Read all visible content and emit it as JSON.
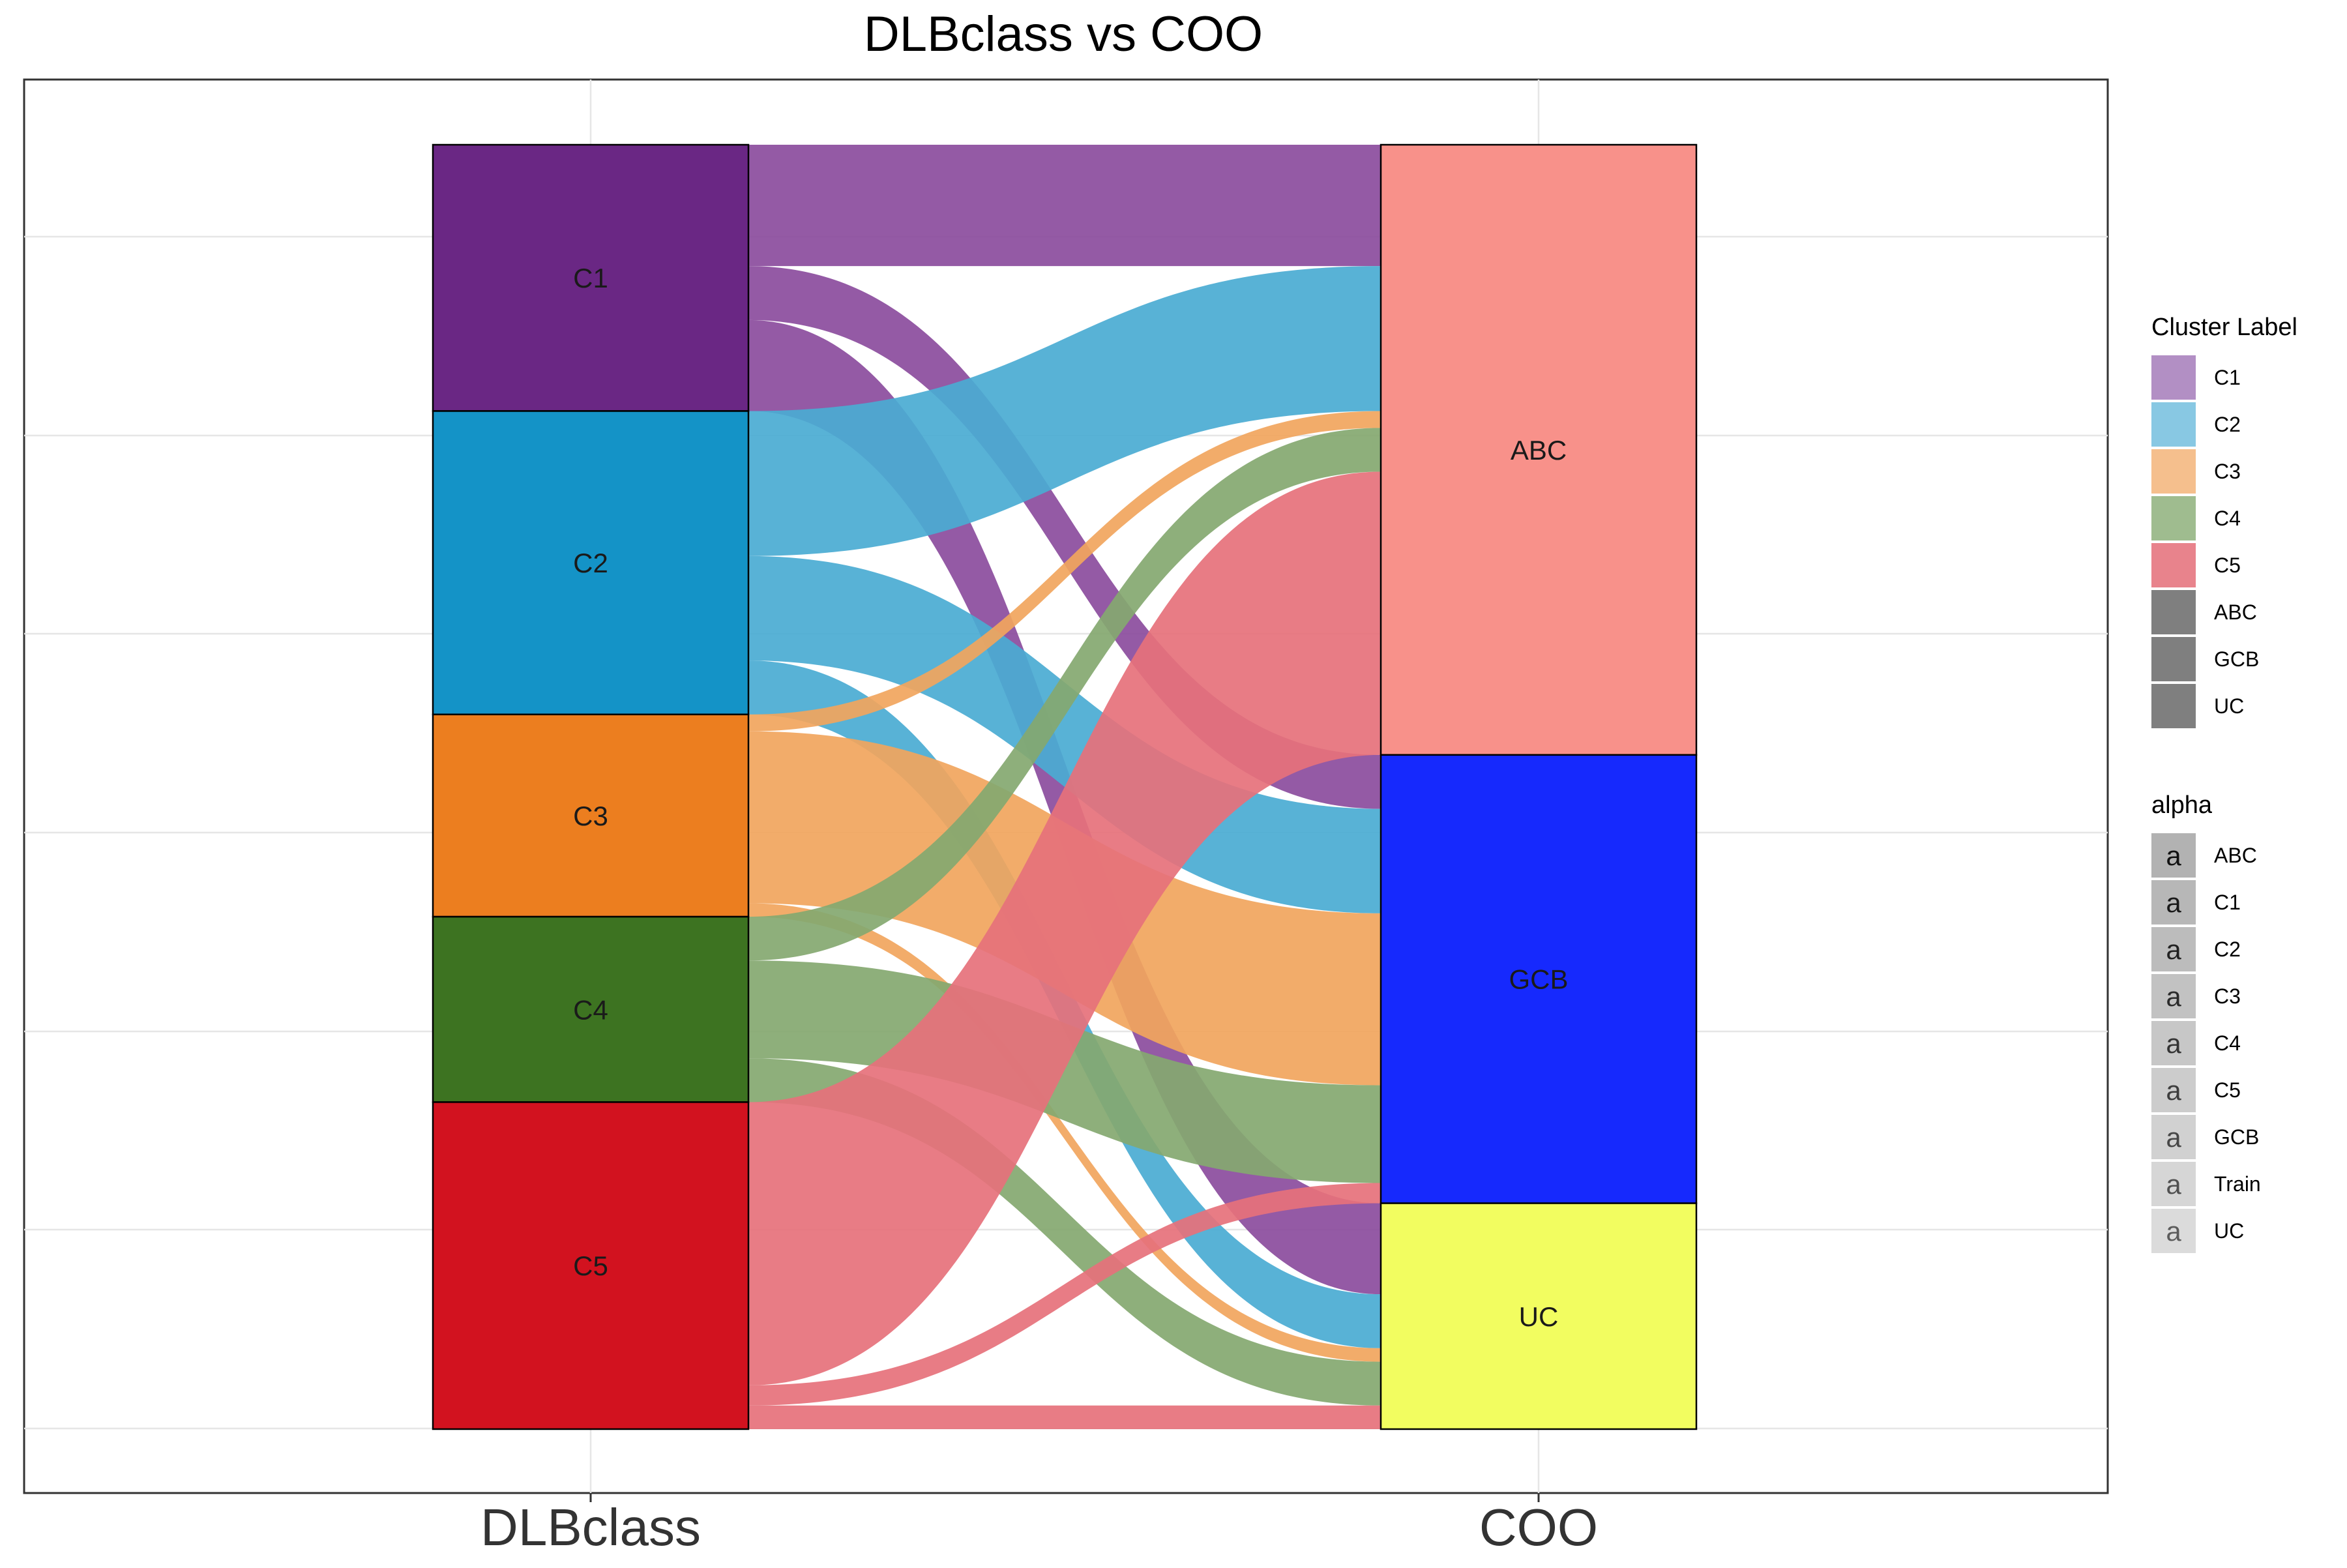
{
  "chart_data": {
    "type": "alluvial",
    "title": "DLBclass vs COO",
    "axes": [
      "DLBclass",
      "COO"
    ],
    "strata": {
      "DLBclass": [
        "C1",
        "C2",
        "C3",
        "C4",
        "C5"
      ],
      "COO": [
        "ABC",
        "GCB",
        "UC"
      ]
    },
    "flows": [
      {
        "from": "C1",
        "to": "ABC",
        "value": 36
      },
      {
        "from": "C1",
        "to": "GCB",
        "value": 16
      },
      {
        "from": "C1",
        "to": "UC",
        "value": 27
      },
      {
        "from": "C2",
        "to": "ABC",
        "value": 43
      },
      {
        "from": "C2",
        "to": "GCB",
        "value": 31
      },
      {
        "from": "C2",
        "to": "UC",
        "value": 16
      },
      {
        "from": "C3",
        "to": "ABC",
        "value": 5
      },
      {
        "from": "C3",
        "to": "GCB",
        "value": 51
      },
      {
        "from": "C3",
        "to": "UC",
        "value": 4
      },
      {
        "from": "C4",
        "to": "ABC",
        "value": 13
      },
      {
        "from": "C4",
        "to": "GCB",
        "value": 29
      },
      {
        "from": "C4",
        "to": "UC",
        "value": 13
      },
      {
        "from": "C5",
        "to": "ABC",
        "value": 84
      },
      {
        "from": "C5",
        "to": "GCB",
        "value": 6
      },
      {
        "from": "C5",
        "to": "UC",
        "value": 7
      }
    ],
    "colors": {
      "C1": "#6a2784",
      "C2": "#1493c7",
      "C3": "#ec7e1f",
      "C4": "#3d7321",
      "C5": "#d2121f",
      "ABC": "#f8918a",
      "GCB": "#1629fd",
      "UC": "#f2fd60",
      "flow_C1": "#8b4c9d",
      "flow_C2": "#4aabd3",
      "flow_C3": "#f1a55d",
      "flow_C4": "#84a870",
      "flow_C5": "#e6717b",
      "legend_gray": "#7f7f7f"
    },
    "legends": [
      {
        "title": "Cluster Label",
        "entries": [
          {
            "label": "C1",
            "color": "#b28fc4"
          },
          {
            "label": "C2",
            "color": "#88c8e3"
          },
          {
            "label": "C3",
            "color": "#f5bf8d"
          },
          {
            "label": "C4",
            "color": "#9fbc8f"
          },
          {
            "label": "C5",
            "color": "#e8838c"
          },
          {
            "label": "ABC",
            "color": "#7f7f7f"
          },
          {
            "label": "GCB",
            "color": "#7f7f7f"
          },
          {
            "label": "UC",
            "color": "#7f7f7f"
          }
        ]
      },
      {
        "title": "alpha",
        "glyph": "a",
        "entries": [
          {
            "label": "ABC",
            "opacity": 0.6
          },
          {
            "label": "C1",
            "opacity": 0.56
          },
          {
            "label": "C2",
            "opacity": 0.52
          },
          {
            "label": "C3",
            "opacity": 0.48
          },
          {
            "label": "C4",
            "opacity": 0.44
          },
          {
            "label": "C5",
            "opacity": 0.4
          },
          {
            "label": "GCB",
            "opacity": 0.36
          },
          {
            "label": "Train",
            "opacity": 0.32
          },
          {
            "label": "UC",
            "opacity": 0.28
          }
        ]
      }
    ],
    "grid": true,
    "legend_position": "right"
  }
}
